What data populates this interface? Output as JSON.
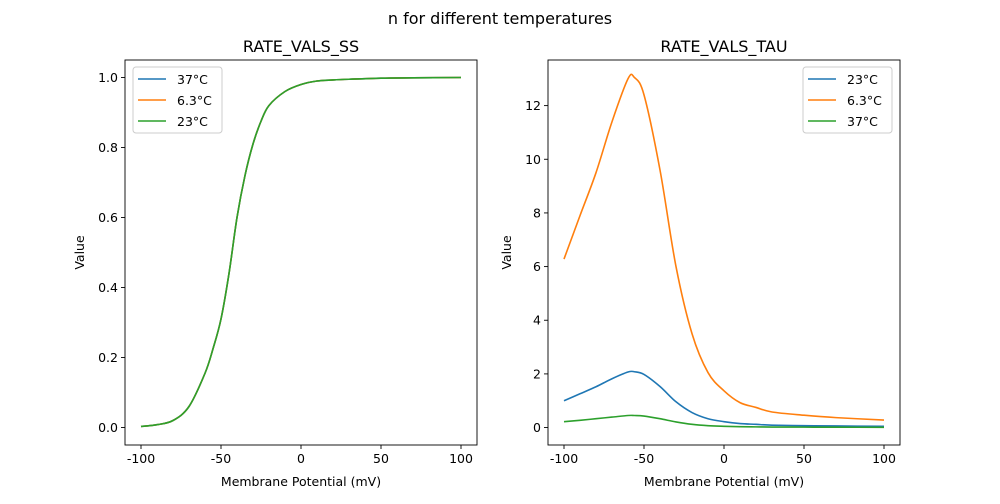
{
  "figure": {
    "title": "n for different temperatures"
  },
  "chart_data": [
    {
      "type": "line",
      "title": "RATE_VALS_SS",
      "xlabel": "Membrane Potential (mV)",
      "ylabel": "Value",
      "xlim": [
        -110,
        110
      ],
      "ylim": [
        -0.05,
        1.05
      ],
      "xticks": [
        -100,
        -50,
        0,
        50,
        100
      ],
      "yticks": [
        "0.0",
        "0.2",
        "0.4",
        "0.6",
        "0.8",
        "1.0"
      ],
      "legend": "upper-left",
      "x": [
        -100,
        -90,
        -80,
        -70,
        -60,
        -55,
        -50,
        -45,
        -40,
        -35,
        -30,
        -25,
        -20,
        -10,
        0,
        10,
        20,
        30,
        50,
        70,
        100
      ],
      "series": [
        {
          "name": "37°C",
          "color": "#1f77b4",
          "values": [
            0.003,
            0.008,
            0.02,
            0.06,
            0.155,
            0.225,
            0.31,
            0.44,
            0.6,
            0.72,
            0.81,
            0.875,
            0.92,
            0.96,
            0.98,
            0.99,
            0.993,
            0.995,
            0.998,
            0.999,
            1.0
          ]
        },
        {
          "name": "6.3°C",
          "color": "#ff7f0e",
          "values": [
            0.003,
            0.008,
            0.02,
            0.06,
            0.155,
            0.225,
            0.31,
            0.44,
            0.6,
            0.72,
            0.81,
            0.875,
            0.92,
            0.96,
            0.98,
            0.99,
            0.993,
            0.995,
            0.998,
            0.999,
            1.0
          ]
        },
        {
          "name": "23°C",
          "color": "#2ca02c",
          "values": [
            0.003,
            0.008,
            0.02,
            0.06,
            0.155,
            0.225,
            0.31,
            0.44,
            0.6,
            0.72,
            0.81,
            0.875,
            0.92,
            0.96,
            0.98,
            0.99,
            0.993,
            0.995,
            0.998,
            0.999,
            1.0
          ]
        }
      ]
    },
    {
      "type": "line",
      "title": "RATE_VALS_TAU",
      "xlabel": "Membrane Potential (mV)",
      "ylabel": "Value",
      "xlim": [
        -110,
        110
      ],
      "ylim": [
        -0.65,
        13.7
      ],
      "xticks": [
        -100,
        -50,
        0,
        50,
        100
      ],
      "yticks": [
        "0",
        "2",
        "4",
        "6",
        "8",
        "10",
        "12"
      ],
      "legend": "upper-right",
      "x": [
        -100,
        -90,
        -80,
        -70,
        -60,
        -56,
        -50,
        -40,
        -30,
        -20,
        -10,
        0,
        10,
        20,
        30,
        50,
        70,
        100
      ],
      "series": [
        {
          "name": "23°C",
          "color": "#1f77b4",
          "values": [
            1.0,
            1.26,
            1.52,
            1.82,
            2.07,
            2.08,
            1.98,
            1.53,
            0.96,
            0.56,
            0.33,
            0.22,
            0.15,
            0.12,
            0.09,
            0.07,
            0.06,
            0.045
          ]
        },
        {
          "name": "6.3°C",
          "color": "#ff7f0e",
          "values": [
            6.28,
            7.9,
            9.5,
            11.4,
            13.0,
            13.05,
            12.4,
            9.6,
            6.0,
            3.5,
            2.05,
            1.37,
            0.93,
            0.75,
            0.58,
            0.46,
            0.37,
            0.28
          ]
        },
        {
          "name": "37°C",
          "color": "#2ca02c",
          "values": [
            0.22,
            0.27,
            0.33,
            0.39,
            0.45,
            0.45,
            0.43,
            0.33,
            0.21,
            0.12,
            0.07,
            0.047,
            0.032,
            0.026,
            0.02,
            0.016,
            0.013,
            0.01
          ]
        }
      ]
    }
  ]
}
